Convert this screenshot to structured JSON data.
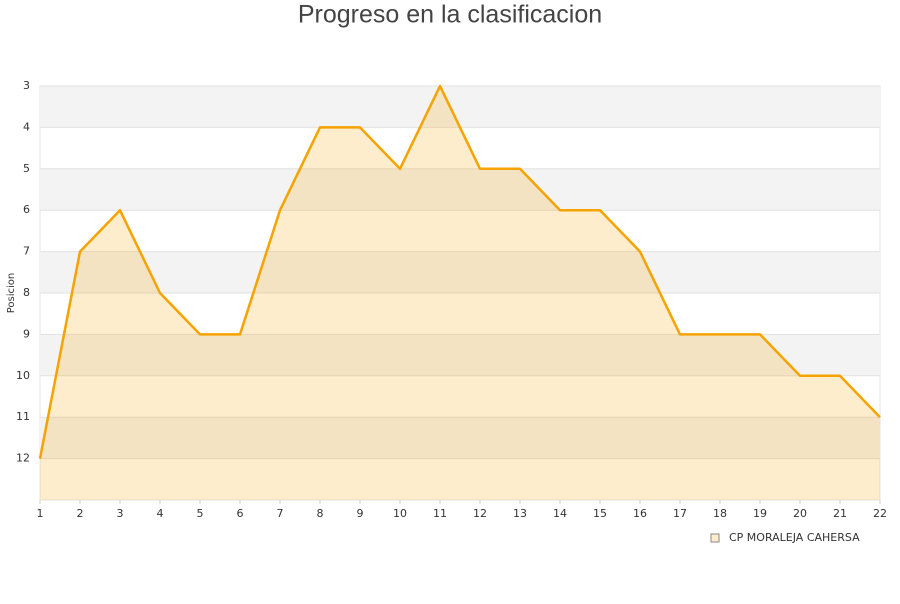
{
  "chart_data": {
    "type": "area",
    "title": "Progreso en la clasificacion",
    "y_label": "Posicion",
    "x": [
      1,
      2,
      3,
      4,
      5,
      6,
      7,
      8,
      9,
      10,
      11,
      12,
      13,
      14,
      15,
      16,
      17,
      18,
      19,
      20,
      21,
      22
    ],
    "series": [
      {
        "name": "CP MORALEJA CAHERSA",
        "color": "#f5a300",
        "values": [
          12,
          7,
          6,
          8,
          9,
          9,
          6,
          4,
          4,
          5,
          3,
          5,
          5,
          6,
          6,
          7,
          9,
          9,
          9,
          10,
          10,
          11
        ]
      }
    ],
    "xlim": [
      1,
      22
    ],
    "xticks": [
      1,
      2,
      3,
      4,
      5,
      6,
      7,
      8,
      9,
      10,
      11,
      12,
      13,
      14,
      15,
      16,
      17,
      18,
      19,
      20,
      21,
      22
    ],
    "ylim": [
      3,
      13
    ],
    "yticks": [
      3,
      4,
      5,
      6,
      7,
      8,
      9,
      10,
      11,
      12
    ],
    "invert_y": true,
    "grid": true,
    "legend": "bottom-right"
  }
}
